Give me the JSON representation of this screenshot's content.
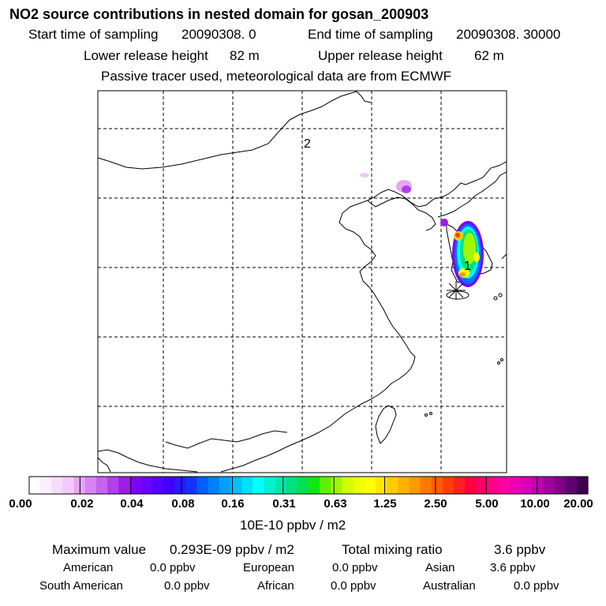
{
  "title": "NO2 source contributions in nested domain for gosan_200903",
  "header": {
    "start_label": "Start time of sampling",
    "start_value": "20090308.     0",
    "end_label": "End time of sampling",
    "end_value": "20090308. 30000",
    "lower_label": "Lower release height",
    "lower_value": "82 m",
    "upper_label": "Upper release height",
    "upper_value": "62 m",
    "tracer_note": "Passive tracer used, meteorological data are from ECMWF"
  },
  "map": {
    "labels": {
      "point_2": "2",
      "point_1": "1"
    },
    "receptor_marker": "asterisk-icon"
  },
  "colorbar": {
    "tick_labels": [
      "0.00",
      "0.02",
      "0.04",
      "0.08",
      "0.16",
      "0.31",
      "0.63",
      "1.25",
      "2.50",
      "5.00",
      "10.00",
      "20.00"
    ],
    "units": "10E-10 ppbv / m2",
    "colors": [
      "#ffffff",
      "#fbeefe",
      "#f7dcfc",
      "#f3c8fa",
      "#e8a6f7",
      "#d884f3",
      "#c763f0",
      "#b13feb",
      "#9b1de7",
      "#8000ff",
      "#6c00ff",
      "#5500ff",
      "#3f00ff",
      "#2a19ff",
      "#1233ff",
      "#0060ff",
      "#0080ff",
      "#00a0ff",
      "#00c0ff",
      "#00e0ff",
      "#00ffff",
      "#00f0d0",
      "#00e8a8",
      "#00e080",
      "#00e050",
      "#10e810",
      "#60f000",
      "#a0f800",
      "#d0ff00",
      "#f0ff00",
      "#ffff00",
      "#ffe600",
      "#ffcc00",
      "#ffb300",
      "#ff9900",
      "#ff7a00",
      "#ff5c00",
      "#ff3d00",
      "#ff1f1f",
      "#ff0044",
      "#ff0066",
      "#ff0088",
      "#ff00a6",
      "#ec00b4",
      "#d800b8",
      "#c000b0",
      "#a000a0",
      "#800088",
      "#600070",
      "#400050"
    ]
  },
  "summary": {
    "max_label": "Maximum value",
    "max_value": "0.293E-09 ppbv / m2",
    "total_label": "Total mixing ratio",
    "total_value": "3.6 ppbv",
    "regions": [
      {
        "name": "American",
        "value": "0.0 ppbv"
      },
      {
        "name": "European",
        "value": "0.0 ppbv"
      },
      {
        "name": "Asian",
        "value": "3.6 ppbv"
      },
      {
        "name": "South American",
        "value": "0.0 ppbv"
      },
      {
        "name": "African",
        "value": "0.0 ppbv"
      },
      {
        "name": "Australian",
        "value": "0.0 ppbv"
      }
    ]
  }
}
